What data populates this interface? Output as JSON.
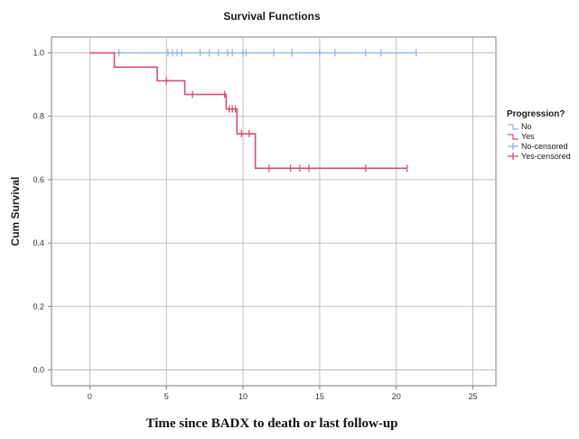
{
  "chart_data": {
    "type": "line",
    "title": "Survival Functions",
    "xlabel": "Time since BADX to death or last follow-up",
    "ylabel": "Cum Survival",
    "xlim": [
      -2.5,
      26.5
    ],
    "ylim": [
      -0.05,
      1.05
    ],
    "xticks": [
      0,
      5,
      10,
      15,
      20,
      25
    ],
    "yticks": [
      0.0,
      0.2,
      0.4,
      0.6,
      0.8,
      1.0
    ],
    "xtick_labels": [
      "0",
      "5",
      "10",
      "15",
      "20",
      "25"
    ],
    "ytick_labels": [
      "0.0",
      "0.2",
      "0.4",
      "0.6",
      "0.8",
      "1.0"
    ],
    "grid": true,
    "legend": {
      "title": "Progression?",
      "placement": "right",
      "entries": [
        "No",
        "Yes",
        "No-censored",
        "Yes-censored"
      ]
    },
    "colors": {
      "No": "#8fb3d9",
      "Yes": "#d64f72",
      "grid": "#bfbfbf",
      "frame": "#7f7f7f"
    },
    "series": [
      {
        "name": "No",
        "step": [
          [
            0,
            1.0
          ],
          [
            21.3,
            1.0
          ]
        ],
        "censored": [
          [
            1.9,
            1.0
          ],
          [
            5.1,
            1.0
          ],
          [
            5.4,
            1.0
          ],
          [
            5.7,
            1.0
          ],
          [
            6.0,
            1.0
          ],
          [
            7.2,
            1.0
          ],
          [
            7.8,
            1.0
          ],
          [
            8.4,
            1.0
          ],
          [
            9.0,
            1.0
          ],
          [
            9.3,
            1.0
          ],
          [
            10.0,
            1.0
          ],
          [
            10.2,
            1.0
          ],
          [
            12.0,
            1.0
          ],
          [
            13.2,
            1.0
          ],
          [
            15.0,
            1.0
          ],
          [
            16.0,
            1.0
          ],
          [
            18.0,
            1.0
          ],
          [
            19.0,
            1.0
          ],
          [
            21.3,
            1.0
          ]
        ]
      },
      {
        "name": "Yes",
        "step": [
          [
            0,
            1.0
          ],
          [
            1.6,
            0.955
          ],
          [
            4.4,
            0.912
          ],
          [
            6.2,
            0.869
          ],
          [
            8.9,
            0.823
          ],
          [
            9.6,
            0.745
          ],
          [
            10.8,
            0.636
          ],
          [
            20.7,
            0.636
          ]
        ],
        "censored": [
          [
            5.0,
            0.912
          ],
          [
            6.7,
            0.869
          ],
          [
            8.8,
            0.869
          ],
          [
            9.1,
            0.823
          ],
          [
            9.3,
            0.823
          ],
          [
            9.5,
            0.823
          ],
          [
            9.9,
            0.745
          ],
          [
            10.4,
            0.745
          ],
          [
            11.7,
            0.636
          ],
          [
            13.1,
            0.636
          ],
          [
            13.7,
            0.636
          ],
          [
            14.3,
            0.636
          ],
          [
            18.0,
            0.636
          ],
          [
            20.7,
            0.636
          ]
        ]
      }
    ]
  }
}
